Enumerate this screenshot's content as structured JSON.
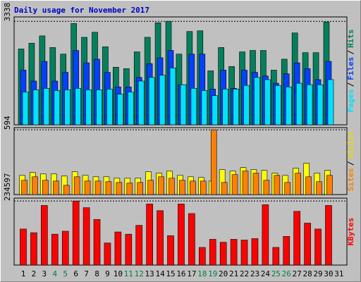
{
  "legend_separator": "/",
  "chart_data": [
    {
      "type": "bar",
      "title": "Daily usage for November 2017",
      "ylim": [
        0,
        3479
      ],
      "yticks": [
        3338
      ],
      "series": [
        {
          "name": "Hits",
          "color": "#00805c",
          "values": [
            2445,
            2633,
            2868,
            2492,
            2280,
            3268,
            2821,
            2985,
            2515,
            1857,
            1810,
            2351,
            2821,
            3291,
            3338,
            2280,
            3009,
            3032,
            1740,
            2492,
            1880,
            2351,
            2398,
            2398,
            1763,
            2116,
            2962,
            2327,
            2327,
            3315,
            null
          ]
        },
        {
          "name": "Files",
          "color": "#0040ff",
          "values": [
            1763,
            1410,
            2045,
            1410,
            1692,
            2398,
            1998,
            2116,
            1692,
            1222,
            1222,
            1528,
            1974,
            2162,
            2398,
            1293,
            2280,
            2280,
            1152,
            1763,
            1175,
            1763,
            1692,
            1575,
            1340,
            1645,
            1998,
            1810,
            1457,
            2045,
            null
          ]
        },
        {
          "name": "Pages",
          "color": "#00e0ff",
          "values": [
            1058,
            1128,
            1175,
            1105,
            1128,
            1175,
            1128,
            1128,
            1152,
            987,
            1058,
            1410,
            1528,
            1598,
            1833,
            1293,
            1175,
            1105,
            940,
            1152,
            1152,
            1269,
            1528,
            1457,
            1269,
            1222,
            1340,
            1293,
            1293,
            1457,
            null
          ]
        }
      ]
    },
    {
      "type": "bar",
      "ylim": [
        0,
        614
      ],
      "yticks": [
        594
      ],
      "series": [
        {
          "name": "Visits",
          "color": "#ffff00",
          "text_color": "#e8d800",
          "values": [
            176,
            203,
            189,
            189,
            170,
            209,
            176,
            163,
            163,
            150,
            150,
            150,
            209,
            196,
            216,
            176,
            163,
            157,
            124,
            229,
            216,
            248,
            229,
            222,
            196,
            176,
            242,
            287,
            196,
            222,
            null
          ]
        },
        {
          "name": "Sites",
          "color": "#ff8000",
          "values": [
            131,
            163,
            131,
            124,
            85,
            163,
            124,
            124,
            118,
            111,
            105,
            111,
            131,
            163,
            150,
            131,
            124,
            124,
            594,
            111,
            183,
            216,
            196,
            131,
            176,
            111,
            196,
            163,
            118,
            176,
            null
          ]
        }
      ]
    },
    {
      "type": "bar",
      "ylim": [
        0,
        245400
      ],
      "yticks": [
        234597
      ],
      "categories": [
        "1",
        "2",
        "3",
        "4",
        "5",
        "6",
        "7",
        "8",
        "9",
        "10",
        "11",
        "12",
        "13",
        "14",
        "15",
        "16",
        "17",
        "18",
        "19",
        "20",
        "21",
        "22",
        "23",
        "24",
        "25",
        "26",
        "27",
        "28",
        "29",
        "30",
        "31"
      ],
      "x_label_colors": [
        "#000",
        "#000",
        "#000",
        "#008040",
        "#008040",
        "#000",
        "#000",
        "#000",
        "#000",
        "#000",
        "#008040",
        "#008040",
        "#000",
        "#000",
        "#000",
        "#000",
        "#000",
        "#008040",
        "#008040",
        "#000",
        "#000",
        "#000",
        "#000",
        "#000",
        "#008040",
        "#008040",
        "#000",
        "#000",
        "#000",
        "#000",
        "#000"
      ],
      "series": [
        {
          "name": "KBytes",
          "color": "#ff0000",
          "values": [
            132100,
            118600,
            218400,
            113200,
            124000,
            234597,
            210300,
            167200,
            80900,
            121300,
            113200,
            145600,
            223800,
            199500,
            107800,
            223800,
            188700,
            64700,
            94400,
            83600,
            94400,
            91700,
            97100,
            221100,
            64700,
            105100,
            196800,
            153700,
            132100,
            218400,
            null
          ]
        }
      ]
    }
  ]
}
